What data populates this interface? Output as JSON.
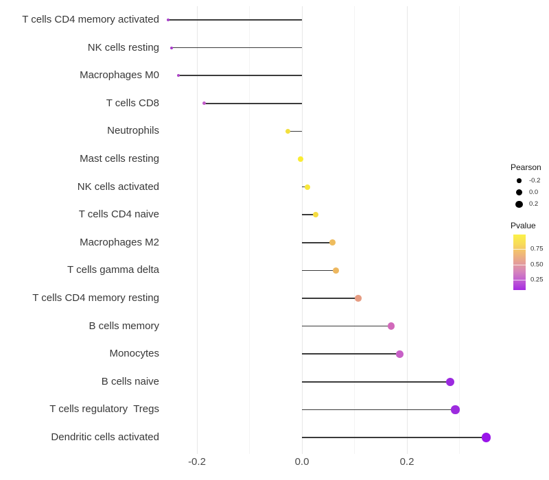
{
  "chart_data": {
    "type": "lollipop",
    "orientation": "horizontal",
    "title": "",
    "xlabel": "",
    "ylabel": "",
    "grid": "vertical major+minor, light gray on white panel",
    "legend_position": "right",
    "x_axis": {
      "ticks": [
        -0.2,
        0.0,
        0.2
      ],
      "tick_labels": [
        "-0.2",
        "0.0",
        "0.2"
      ],
      "minor_ticks": [
        -0.1,
        0.1,
        0.3
      ],
      "range": [
        -0.29,
        0.38
      ]
    },
    "series_name": "Pearson",
    "points": [
      {
        "category": "T cells CD4 memory activated",
        "pearson": -0.255,
        "color": "#A73EC9"
      },
      {
        "category": "NK cells resting",
        "pearson": -0.248,
        "color": "#A83BC9"
      },
      {
        "category": "Macrophages M0",
        "pearson": -0.235,
        "color": "#AC45C6"
      },
      {
        "category": "T cells CD8",
        "pearson": -0.186,
        "color": "#C25CC9"
      },
      {
        "category": "Neutrophils",
        "pearson": -0.027,
        "color": "#F2DF3E"
      },
      {
        "category": "Mast cells resting",
        "pearson": -0.003,
        "color": "#FAEC33"
      },
      {
        "category": "NK cells activated",
        "pearson": 0.01,
        "color": "#F8E73B"
      },
      {
        "category": "T cells CD4 naive",
        "pearson": 0.026,
        "color": "#F5DC41"
      },
      {
        "category": "Macrophages M2",
        "pearson": 0.058,
        "color": "#EEBC5E"
      },
      {
        "category": "T cells gamma delta",
        "pearson": 0.065,
        "color": "#EDB75F"
      },
      {
        "category": "T cells CD4 memory resting",
        "pearson": 0.107,
        "color": "#E69C82"
      },
      {
        "category": "B cells memory",
        "pearson": 0.17,
        "color": "#D169BA"
      },
      {
        "category": "Monocytes",
        "pearson": 0.186,
        "color": "#C760C6"
      },
      {
        "category": "B cells naive",
        "pearson": 0.282,
        "color": "#9B2ADF"
      },
      {
        "category": "T cells regulatory  Tregs",
        "pearson": 0.292,
        "color": "#9C2BDE"
      },
      {
        "category": "Dendritic cells activated",
        "pearson": 0.351,
        "color": "#9915E9"
      }
    ],
    "legend": {
      "size": {
        "title": "Pearson",
        "entries": [
          {
            "label": "-0.2",
            "value": -0.2
          },
          {
            "label": "0.0",
            "value": 0.0
          },
          {
            "label": "0.2",
            "value": 0.2
          }
        ]
      },
      "color": {
        "title": "Pvalue",
        "tick_labels": [
          "0.75",
          "0.50",
          "0.25"
        ],
        "tick_values": [
          0.75,
          0.5,
          0.25
        ],
        "gradient_top_to_bottom": [
          "#FBF148",
          "#F8DC59",
          "#F1BB74",
          "#E5A096",
          "#D685BB",
          "#C05DD3",
          "#A52BE0"
        ]
      }
    }
  }
}
